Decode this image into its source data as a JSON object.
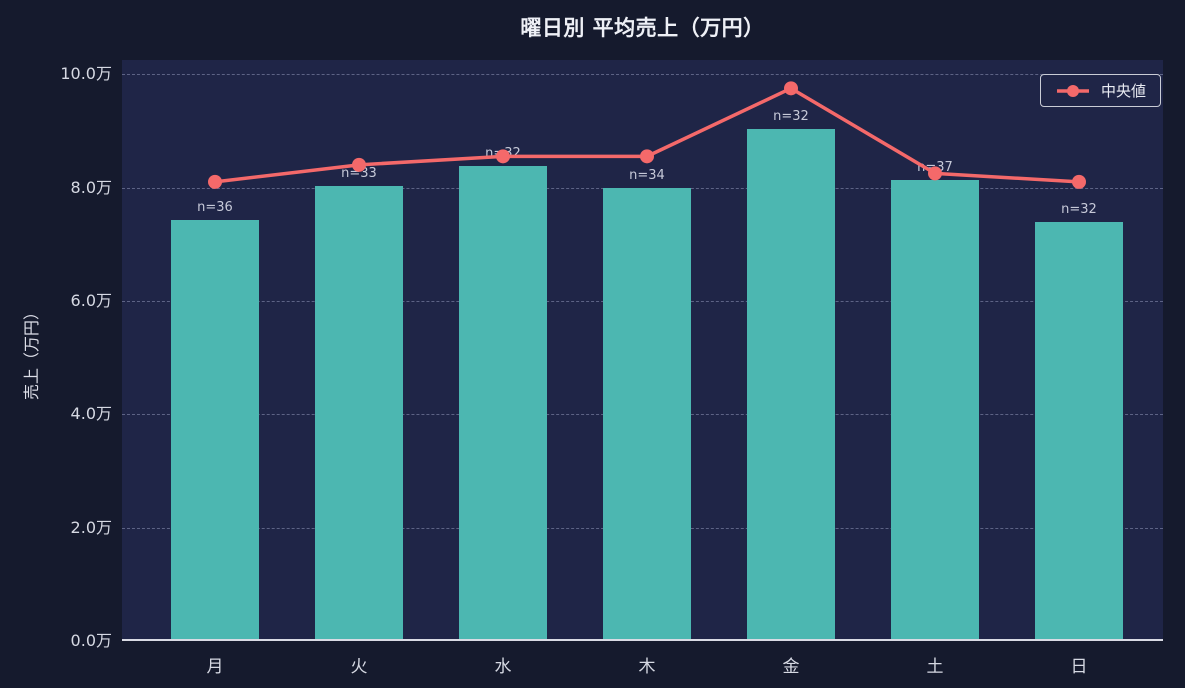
{
  "chart_data": {
    "type": "bar",
    "title": "曜日別 平均売上（万円）",
    "ylabel": "売上（万円）",
    "xlabel": "",
    "categories": [
      "月",
      "火",
      "水",
      "木",
      "金",
      "土",
      "日"
    ],
    "series": [
      {
        "name": "平均売上",
        "type": "bar",
        "color": "#4cb7b1",
        "values": [
          7.4,
          8.0,
          8.35,
          7.95,
          9.0,
          8.1,
          7.35
        ]
      },
      {
        "name": "中央値",
        "type": "line",
        "color": "#f4696a",
        "values": [
          8.1,
          8.4,
          8.55,
          8.55,
          9.75,
          8.25,
          8.1
        ]
      }
    ],
    "bar_labels": [
      "n=36",
      "n=33",
      "n=32",
      "n=34",
      "n=32",
      "n=37",
      "n=32"
    ],
    "ylim": [
      0,
      10.25
    ],
    "yticks": [
      0,
      2,
      4,
      6,
      8,
      10
    ],
    "ytick_labels": [
      "0.0万",
      "2.0万",
      "4.0万",
      "6.0万",
      "8.0万",
      "10.0万"
    ],
    "grid": "horizontal-dashed",
    "legend": {
      "position": "top-right",
      "entries": [
        {
          "label": "中央値",
          "color": "#f4696a"
        }
      ]
    }
  }
}
